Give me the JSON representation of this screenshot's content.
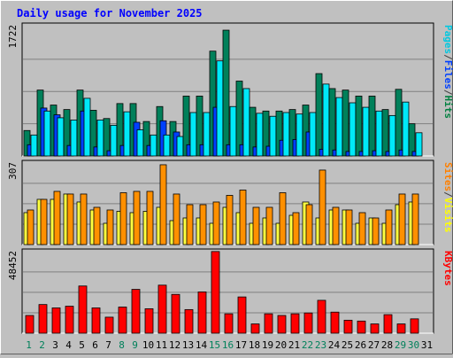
{
  "chart_data": [
    {
      "type": "bar",
      "panel": "hits-files-pages",
      "title": "Daily usage for November 2025",
      "ylabel_parts": [
        {
          "text": "Pages",
          "color": "#00c8e0"
        },
        {
          "text": "/",
          "color": "#404040"
        },
        {
          "text": "Files",
          "color": "#0040ff"
        },
        {
          "text": "/",
          "color": "#404040"
        },
        {
          "text": "Hits",
          "color": "#008040"
        }
      ],
      "ymax_label": "1722",
      "ylim": [
        0,
        1722
      ],
      "categories": [
        "1",
        "2",
        "3",
        "4",
        "5",
        "6",
        "7",
        "8",
        "9",
        "10",
        "11",
        "12",
        "13",
        "14",
        "15",
        "16",
        "17",
        "18",
        "19",
        "20",
        "21",
        "22",
        "23",
        "24",
        "25",
        "26",
        "27",
        "28",
        "29",
        "30"
      ],
      "series": [
        {
          "name": "Hits",
          "color": "#00805a",
          "values": [
            340,
            880,
            680,
            620,
            880,
            610,
            500,
            700,
            700,
            460,
            660,
            460,
            800,
            800,
            1400,
            1680,
            1000,
            650,
            600,
            600,
            620,
            680,
            1100,
            900,
            880,
            800,
            800,
            620,
            890,
            430
          ]
        },
        {
          "name": "Files",
          "color": "#0040ff",
          "values": [
            150,
            640,
            550,
            140,
            600,
            120,
            70,
            140,
            450,
            140,
            470,
            320,
            150,
            150,
            650,
            150,
            150,
            120,
            130,
            210,
            220,
            320,
            90,
            80,
            60,
            60,
            70,
            60,
            80,
            60
          ]
        },
        {
          "name": "Pages",
          "color": "#00e8f8",
          "values": [
            280,
            600,
            510,
            480,
            770,
            480,
            410,
            590,
            350,
            280,
            280,
            260,
            580,
            580,
            1270,
            660,
            900,
            570,
            530,
            580,
            560,
            580,
            960,
            780,
            710,
            650,
            600,
            540,
            720,
            310
          ]
        }
      ]
    },
    {
      "type": "bar",
      "panel": "visits-sites",
      "ylabel_parts": [
        {
          "text": "Sites",
          "color": "#ff8000"
        },
        {
          "text": "/",
          "color": "#404040"
        },
        {
          "text": "Visits",
          "color": "#ffff00"
        }
      ],
      "ymax_label": "307",
      "ylim": [
        0,
        307
      ],
      "categories": [
        "1",
        "2",
        "3",
        "4",
        "5",
        "6",
        "7",
        "8",
        "9",
        "10",
        "11",
        "12",
        "13",
        "14",
        "15",
        "16",
        "17",
        "18",
        "19",
        "20",
        "21",
        "22",
        "23",
        "24",
        "25",
        "26",
        "27",
        "28",
        "29",
        "30"
      ],
      "series": [
        {
          "name": "Visits",
          "color": "#ffff40",
          "values": [
            120,
            170,
            170,
            190,
            160,
            130,
            80,
            125,
            120,
            125,
            140,
            90,
            100,
            100,
            80,
            140,
            120,
            80,
            100,
            80,
            110,
            160,
            100,
            130,
            130,
            80,
            100,
            80,
            150,
            160
          ]
        },
        {
          "name": "Sites",
          "color": "#ff9000",
          "values": [
            130,
            170,
            200,
            190,
            190,
            140,
            130,
            195,
            200,
            200,
            300,
            190,
            150,
            150,
            160,
            185,
            205,
            140,
            140,
            195,
            120,
            150,
            280,
            140,
            130,
            120,
            100,
            130,
            190,
            190
          ]
        }
      ]
    },
    {
      "type": "bar",
      "panel": "kbytes",
      "ylabel_parts": [
        {
          "text": "KBytes",
          "color": "#ff0000"
        }
      ],
      "ymax_label": "48452",
      "ylim": [
        0,
        48452
      ],
      "categories": [
        "1",
        "2",
        "3",
        "4",
        "5",
        "6",
        "7",
        "8",
        "9",
        "10",
        "11",
        "12",
        "13",
        "14",
        "15",
        "16",
        "17",
        "18",
        "19",
        "20",
        "21",
        "22",
        "23",
        "24",
        "25",
        "26",
        "27",
        "28",
        "29",
        "30"
      ],
      "series": [
        {
          "name": "KBytes",
          "color": "#ff0000",
          "values": [
            10500,
            17000,
            15000,
            16000,
            28000,
            15000,
            9500,
            15500,
            26000,
            14500,
            28500,
            23000,
            14000,
            24500,
            48452,
            11500,
            21500,
            5500,
            11500,
            10500,
            11500,
            12000,
            19500,
            12500,
            7700,
            7200,
            5500,
            11000,
            5500,
            8500
          ]
        }
      ]
    }
  ],
  "x_labels": [
    "1",
    "2",
    "3",
    "4",
    "5",
    "6",
    "7",
    "8",
    "9",
    "10",
    "11",
    "12",
    "13",
    "14",
    "15",
    "16",
    "17",
    "18",
    "19",
    "20",
    "21",
    "22",
    "23",
    "24",
    "25",
    "26",
    "27",
    "28",
    "29",
    "30",
    "31"
  ],
  "weekend_days": [
    1,
    2,
    8,
    9,
    15,
    16,
    22,
    23,
    29,
    30
  ],
  "colors": {
    "background": "#c0c0c0",
    "weekday_label": "#000000",
    "weekend_label": "#00805a",
    "title": "#0000ff",
    "panel_bg": "#c0c0c0",
    "grid": "#808080"
  }
}
